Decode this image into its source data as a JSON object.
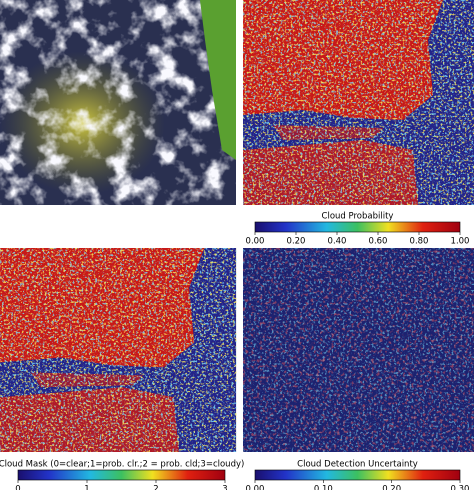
{
  "colorbars": [
    {
      "title": "Cloud Probability",
      "lim": [
        0,
        1
      ],
      "ticks": [
        {
          "value": 0,
          "label": "0.00"
        },
        {
          "value": 0.2,
          "label": "0.20"
        },
        {
          "value": 0.4,
          "label": "0.40"
        },
        {
          "value": 0.6,
          "label": "0.60"
        },
        {
          "value": 0.8,
          "label": "0.80"
        },
        {
          "value": 1,
          "label": "1.00"
        }
      ]
    },
    {
      "title": "Cloud Mask (0=clear;1=prob. clr.;2 = prob. cld;3=cloudy)",
      "lim": [
        0,
        3
      ],
      "ticks": [
        0,
        1,
        2,
        3
      ]
    },
    {
      "title": "Cloud Detection Uncertainty",
      "lim": [
        0,
        0.3
      ],
      "ticks": [
        {
          "value": 0,
          "label": "0.00"
        },
        {
          "value": 0.1,
          "label": "0.10"
        },
        {
          "value": 0.2,
          "label": "0.20"
        },
        {
          "value": 0.3,
          "label": "0.30"
        }
      ]
    }
  ]
}
